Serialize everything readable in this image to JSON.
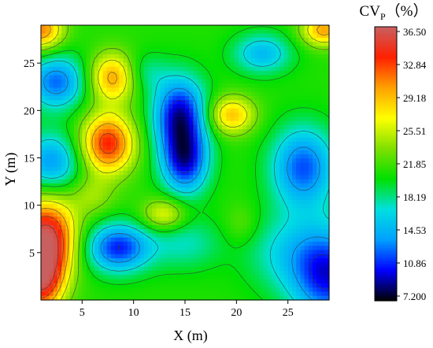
{
  "chart_data": {
    "type": "heatmap",
    "subtype": "filled-contour",
    "xlabel": "X (m)",
    "ylabel": "Y (m)",
    "xlim": [
      1,
      29
    ],
    "ylim": [
      0,
      29
    ],
    "xticks": [
      5,
      10,
      15,
      20,
      25
    ],
    "yticks": [
      5,
      10,
      15,
      20,
      25
    ],
    "colorbar": {
      "title_main": "CV",
      "title_sub": "P",
      "title_unit": "（%）",
      "range": [
        7.2,
        36.5
      ],
      "ticks": [
        "36.50",
        "32.84",
        "29.18",
        "25.51",
        "21.85",
        "18.19",
        "14.53",
        "10.86",
        "7.200"
      ],
      "colors_low_to_high": [
        "#000000",
        "#0000ff",
        "#00a0ff",
        "#00e0e0",
        "#00e000",
        "#80e000",
        "#ffff00",
        "#ffa000",
        "#ff2000",
        "#c86060"
      ]
    },
    "background_level": 21,
    "features": [
      {
        "x": 1.5,
        "y": 6.5,
        "value": 36.0,
        "sx": 2.0,
        "sy": 3.0
      },
      {
        "x": 1.0,
        "y": 2.0,
        "value": 33.0,
        "sx": 1.5,
        "sy": 2.5
      },
      {
        "x": 2.5,
        "y": 23.0,
        "value": 12.5,
        "sx": 2.0,
        "sy": 2.0
      },
      {
        "x": 2.0,
        "y": 14.5,
        "value": 13.5,
        "sx": 2.0,
        "sy": 2.2
      },
      {
        "x": 8.0,
        "y": 23.5,
        "value": 30.0,
        "sx": 1.6,
        "sy": 1.8
      },
      {
        "x": 7.5,
        "y": 16.5,
        "value": 33.5,
        "sx": 1.8,
        "sy": 2.2
      },
      {
        "x": 14.5,
        "y": 19.5,
        "value": 9.5,
        "sx": 1.8,
        "sy": 2.8
      },
      {
        "x": 15.0,
        "y": 14.5,
        "value": 11.0,
        "sx": 1.6,
        "sy": 2.4
      },
      {
        "x": 19.5,
        "y": 19.5,
        "value": 29.0,
        "sx": 1.6,
        "sy": 1.4
      },
      {
        "x": 22.5,
        "y": 26.0,
        "value": 15.0,
        "sx": 2.0,
        "sy": 1.5
      },
      {
        "x": 26.5,
        "y": 14.0,
        "value": 12.0,
        "sx": 2.2,
        "sy": 3.0
      },
      {
        "x": 29.0,
        "y": 2.5,
        "value": 11.0,
        "sx": 2.5,
        "sy": 3.5
      },
      {
        "x": 8.5,
        "y": 5.5,
        "value": 11.0,
        "sx": 2.2,
        "sy": 1.8
      },
      {
        "x": 13.0,
        "y": 9.0,
        "value": 27.0,
        "sx": 1.5,
        "sy": 1.2
      },
      {
        "x": 1.0,
        "y": 28.5,
        "value": 31.0,
        "sx": 1.5,
        "sy": 1.5
      },
      {
        "x": 28.5,
        "y": 28.5,
        "value": 30.0,
        "sx": 1.5,
        "sy": 1.2
      },
      {
        "x": 20.5,
        "y": 8.0,
        "value": 23.0,
        "sx": 1.2,
        "sy": 1.5
      },
      {
        "x": 6.0,
        "y": 11.0,
        "value": 24.0,
        "sx": 1.5,
        "sy": 1.5
      },
      {
        "x": 15.0,
        "y": 6.0,
        "value": 17.5,
        "sx": 2.5,
        "sy": 2.0
      },
      {
        "x": 25.0,
        "y": 5.0,
        "value": 17.0,
        "sx": 3.0,
        "sy": 3.0
      },
      {
        "x": 11.0,
        "y": 24.0,
        "value": 18.0,
        "sx": 1.5,
        "sy": 1.5
      }
    ]
  }
}
